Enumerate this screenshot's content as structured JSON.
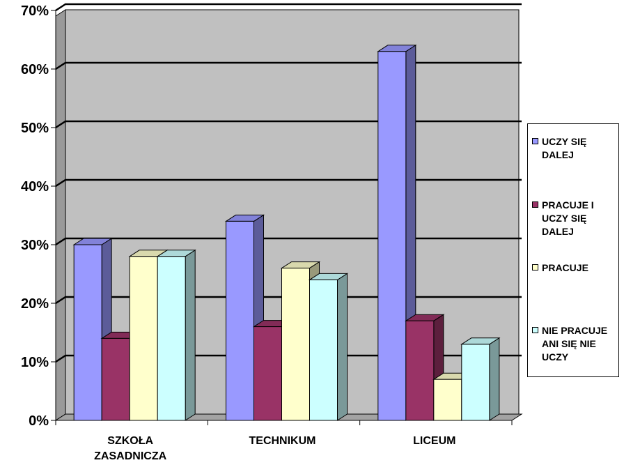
{
  "chart_data": {
    "type": "bar",
    "categories": [
      "SZKOŁA\nZASADNICZA",
      "TECHNIKUM",
      "LICEUM"
    ],
    "series": [
      {
        "name": "UCZY SIĘ\nDALEJ",
        "values": [
          30,
          34,
          63
        ],
        "color": "#9999ff"
      },
      {
        "name": "PRACUJE I\nUCZY SIĘ\nDALEJ",
        "values": [
          14,
          16,
          17
        ],
        "color": "#993366"
      },
      {
        "name": "PRACUJE",
        "values": [
          28,
          26,
          7
        ],
        "color": "#ffffcc"
      },
      {
        "name": "NIE PRACUJE\nANI SIĘ NIE\nUCZY",
        "values": [
          28,
          24,
          13
        ],
        "color": "#ccffff"
      }
    ],
    "yticks": [
      "0%",
      "10%",
      "20%",
      "30%",
      "40%",
      "50%",
      "60%",
      "70%"
    ],
    "ylim": [
      0,
      70
    ],
    "grid": true,
    "legend": "right",
    "wall_color": "#c0c0c0"
  }
}
